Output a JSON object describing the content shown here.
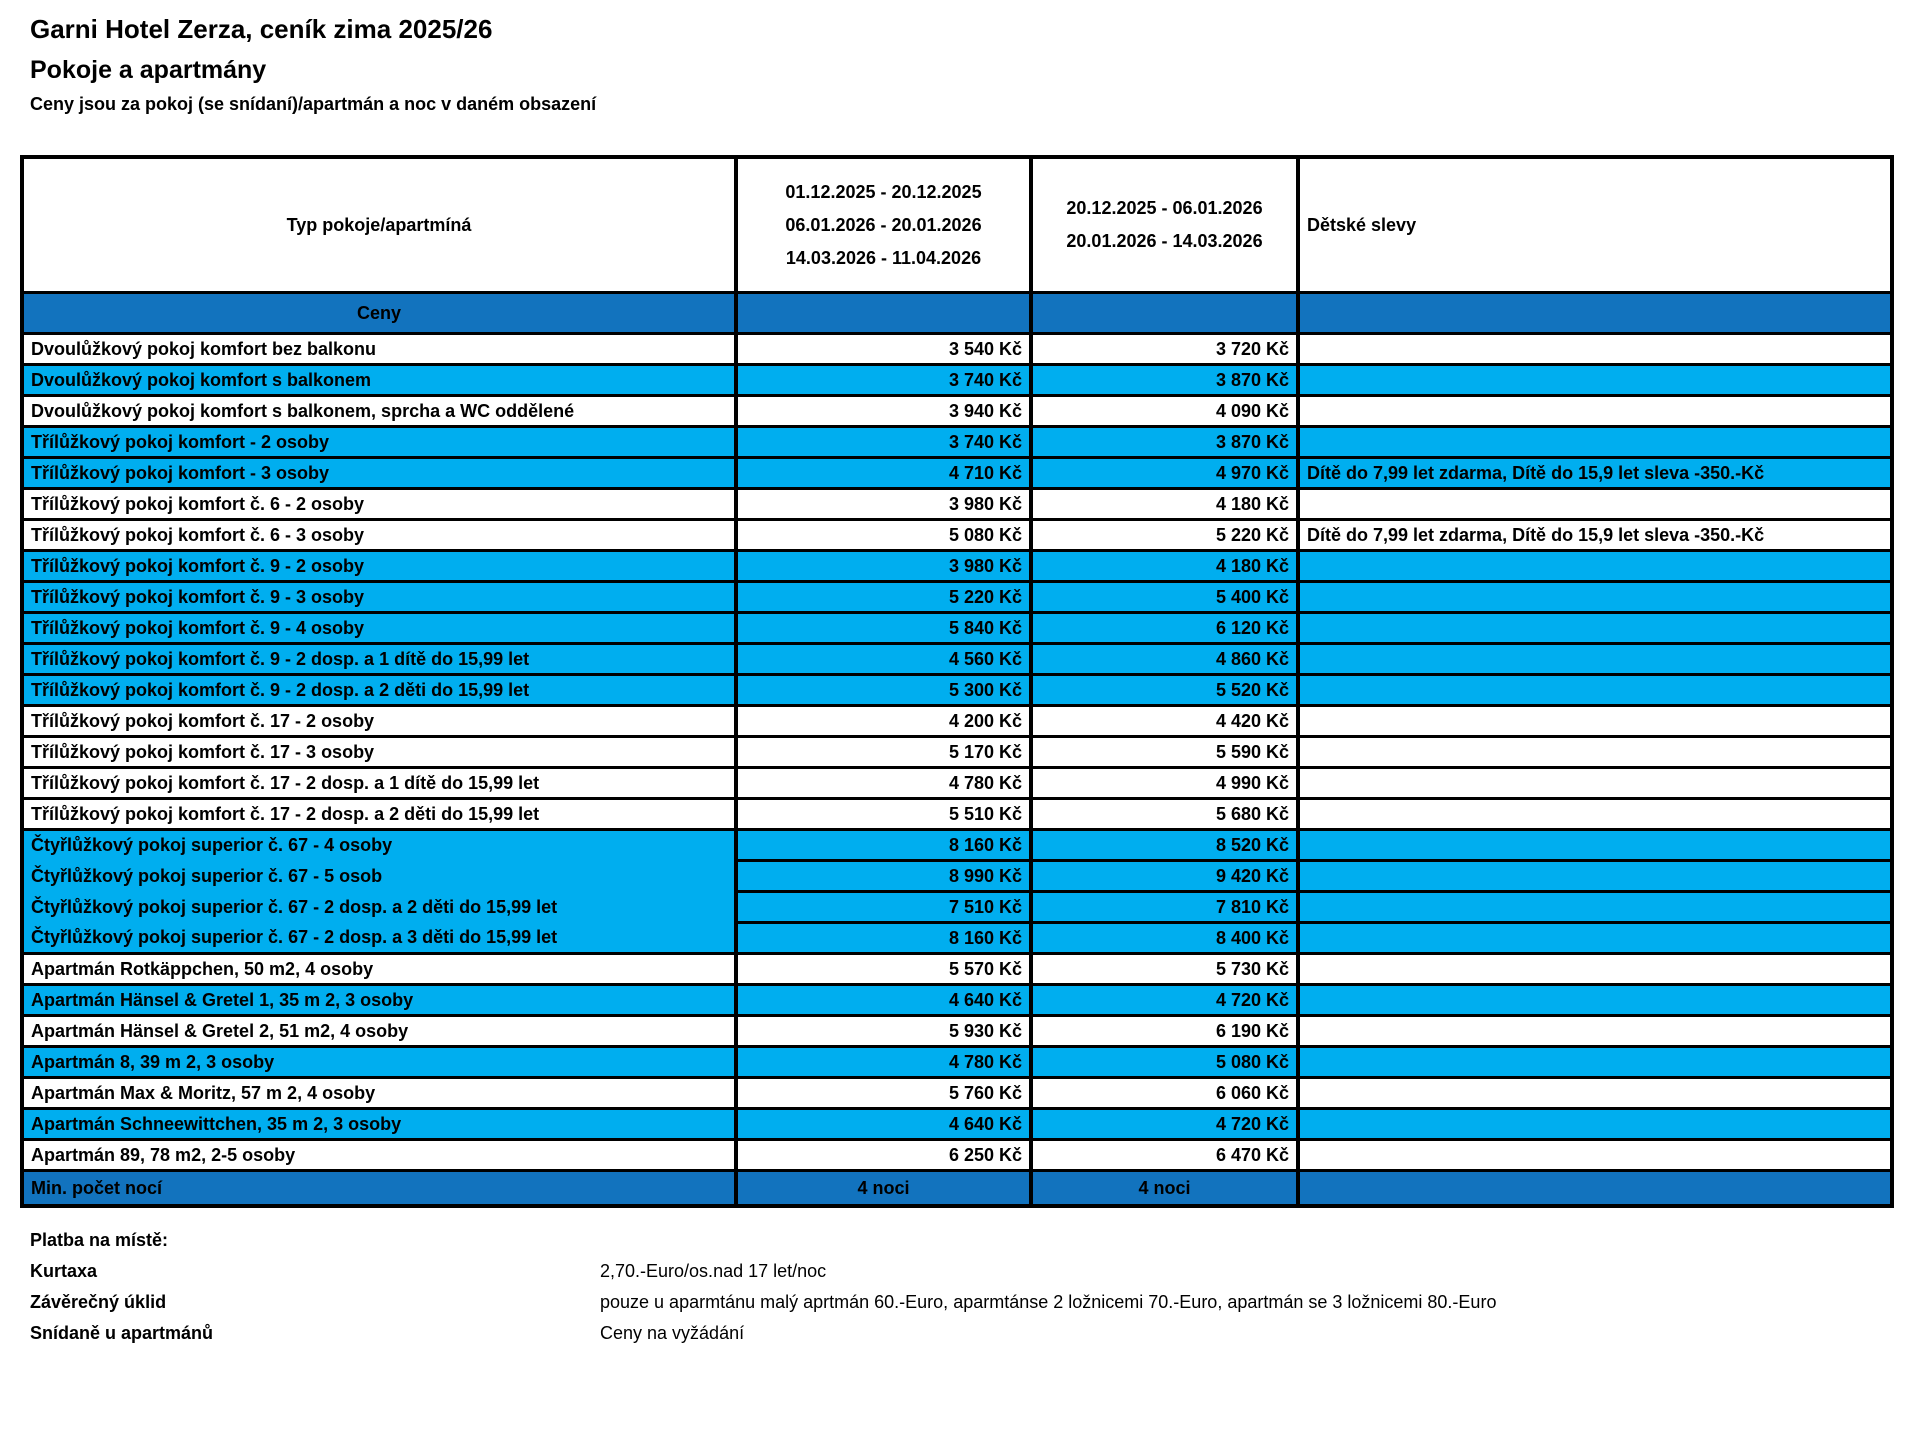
{
  "page": {
    "title": "Garni Hotel Zerza, ceník zima 2025/26",
    "subtitle": "Pokoje a apartmány",
    "note": "Ceny jsou za pokoj (se snídaní)/apartmán a noc v daném obsazení"
  },
  "colors": {
    "dark_blue": "#1273BE",
    "cyan": "#00AEEF",
    "border": "#000000"
  },
  "table": {
    "header": {
      "col_type": "Typ pokoje/apartmíná",
      "col_season_a_lines": [
        "01.12.2025 - 20.12.2025",
        "06.01.2026 - 20.01.2026",
        "14.03.2026 - 11.04.2026"
      ],
      "col_season_b_lines": [
        "20.12.2025 - 06.01.2026",
        "20.01.2026 - 14.03.2026"
      ],
      "col_discounts": "Dětské slevy"
    },
    "section_label": "Ceny",
    "rows": [
      {
        "name": "Dvoulůžkový pokoj komfort bez balkonu",
        "price_a": "3 540 Kč",
        "price_b": "3 720 Kč",
        "note": "",
        "bg": "white"
      },
      {
        "name": "Dvoulůžkový pokoj komfort s balkonem",
        "price_a": "3 740 Kč",
        "price_b": "3 870 Kč",
        "note": "",
        "bg": "cyan"
      },
      {
        "name": "Dvoulůžkový pokoj komfort s balkonem, sprcha a WC oddělené",
        "price_a": "3 940 Kč",
        "price_b": "4 090 Kč",
        "note": "",
        "bg": "white"
      },
      {
        "name": "Třílůžkový pokoj komfort - 2 osoby",
        "price_a": "3 740 Kč",
        "price_b": "3 870 Kč",
        "note": "",
        "bg": "cyan"
      },
      {
        "name": "Třílůžkový pokoj komfort - 3 osoby",
        "price_a": "4 710 Kč",
        "price_b": "4 970 Kč",
        "note": "Dítě do  7,99 let zdarma, Dítě do 15,9 let sleva -350.-Kč",
        "bg": "cyan"
      },
      {
        "name": "Třílůžkový pokoj komfort č. 6 - 2 osoby",
        "price_a": "3 980 Kč",
        "price_b": "4 180 Kč",
        "note": "",
        "bg": "white"
      },
      {
        "name": "Třílůžkový pokoj komfort č. 6 - 3 osoby",
        "price_a": "5 080 Kč",
        "price_b": "5 220 Kč",
        "note": "Dítě do  7,99 let zdarma, Dítě do 15,9 let sleva -350.-Kč",
        "bg": "white"
      },
      {
        "name": "Třílůžkový pokoj komfort č. 9 - 2 osoby",
        "price_a": "3 980 Kč",
        "price_b": "4 180 Kč",
        "note": "",
        "bg": "cyan"
      },
      {
        "name": "Třílůžkový pokoj komfort č. 9 - 3 osoby",
        "price_a": "5 220 Kč",
        "price_b": "5 400 Kč",
        "note": "",
        "bg": "cyan"
      },
      {
        "name": "Třílůžkový pokoj komfort č. 9 - 4 osoby",
        "price_a": "5 840 Kč",
        "price_b": "6 120 Kč",
        "note": "",
        "bg": "cyan"
      },
      {
        "name": "Třílůžkový pokoj komfort č. 9 - 2 dosp. a 1 dítě do 15,99 let",
        "price_a": "4 560 Kč",
        "price_b": "4 860 Kč",
        "note": "",
        "bg": "cyan"
      },
      {
        "name": "Třílůžkový pokoj komfort č. 9 - 2 dosp. a 2 děti do 15,99 let",
        "price_a": "5 300 Kč",
        "price_b": "5 520 Kč",
        "note": "",
        "bg": "cyan"
      },
      {
        "name": "Třílůžkový pokoj komfort č. 17 - 2 osoby",
        "price_a": "4 200 Kč",
        "price_b": "4 420 Kč",
        "note": "",
        "bg": "white"
      },
      {
        "name": "Třílůžkový pokoj komfort č. 17 - 3 osoby",
        "price_a": "5 170 Kč",
        "price_b": "5 590 Kč",
        "note": "",
        "bg": "white"
      },
      {
        "name": "Třílůžkový pokoj komfort č. 17 - 2 dosp. a 1 dítě do 15,99 let",
        "price_a": "4 780 Kč",
        "price_b": "4 990 Kč",
        "note": "",
        "bg": "white"
      },
      {
        "name": "Třílůžkový pokoj komfort č. 17 - 2 dosp. a 2 děti do 15,99 let",
        "price_a": "5 510 Kč",
        "price_b": "5 680 Kč",
        "note": "",
        "bg": "white"
      },
      {
        "name": "Čtyřlůžkový pokoj superior č. 67 - 4 osoby",
        "price_a": "8 160 Kč",
        "price_b": "8 520 Kč",
        "note": "",
        "bg": "cyan"
      },
      {
        "name": "Čtyřlůžkový pokoj superior č. 67 - 5 osob",
        "price_a": "8 990 Kč",
        "price_b": "9 420 Kč",
        "note": "",
        "bg": "cyan",
        "merge_top": true
      },
      {
        "name": "Čtyřlůžkový pokoj superior č. 67 - 2 dosp. a 2 děti do 15,99 let",
        "price_a": "7 510 Kč",
        "price_b": "7 810 Kč",
        "note": "",
        "bg": "cyan",
        "merge_top": true
      },
      {
        "name": "Čtyřlůžkový pokoj superior č. 67 - 2 dosp. a 3 děti do 15,99 let",
        "price_a": "8 160 Kč",
        "price_b": "8 400 Kč",
        "note": "",
        "bg": "cyan",
        "merge_top": true
      },
      {
        "name": "Apartmán Rotkäppchen, 50 m2, 4 osoby",
        "price_a": "5 570 Kč",
        "price_b": "5 730 Kč",
        "note": "",
        "bg": "white"
      },
      {
        "name": "Apartmán Hänsel & Gretel 1, 35 m 2, 3 osoby",
        "price_a": "4 640 Kč",
        "price_b": "4 720 Kč",
        "note": "",
        "bg": "cyan"
      },
      {
        "name": "Apartmán Hänsel & Gretel 2, 51 m2, 4 osoby",
        "price_a": "5 930 Kč",
        "price_b": "6 190 Kč",
        "note": "",
        "bg": "white"
      },
      {
        "name": "Apartmán 8, 39 m 2, 3 osoby",
        "price_a": "4 780 Kč",
        "price_b": "5 080 Kč",
        "note": "",
        "bg": "cyan"
      },
      {
        "name": "Apartmán Max & Moritz, 57 m 2, 4 osoby",
        "price_a": "5 760 Kč",
        "price_b": "6 060 Kč",
        "note": "",
        "bg": "white"
      },
      {
        "name": "Apartmán Schneewittchen, 35 m 2, 3 osoby",
        "price_a": "4 640 Kč",
        "price_b": "4 720 Kč",
        "note": "",
        "bg": "cyan"
      },
      {
        "name": "Apartmán 89, 78 m2, 2-5 osoby",
        "price_a": "6 250 Kč",
        "price_b": "6 470 Kč",
        "note": "",
        "bg": "white"
      }
    ],
    "min_nights_row": {
      "name": "Min. počet nocí",
      "price_a": "4 noci",
      "price_b": "4 noci"
    }
  },
  "payment": {
    "heading": "Platba na místě:",
    "items": [
      {
        "label": "Kurtaxa",
        "value": "2,70.-Euro/os.nad 17 let/noc"
      },
      {
        "label": "Závěrečný úklid",
        "value": "pouze u aparmtánu malý aprtmán 60.-Euro, aparmtánse 2 ložnicemi 70.-Euro, apartmán se 3 ložnicemi 80.-Euro"
      },
      {
        "label": "Snídaně u apartmánů",
        "value": "Ceny na vyžádání"
      }
    ]
  }
}
